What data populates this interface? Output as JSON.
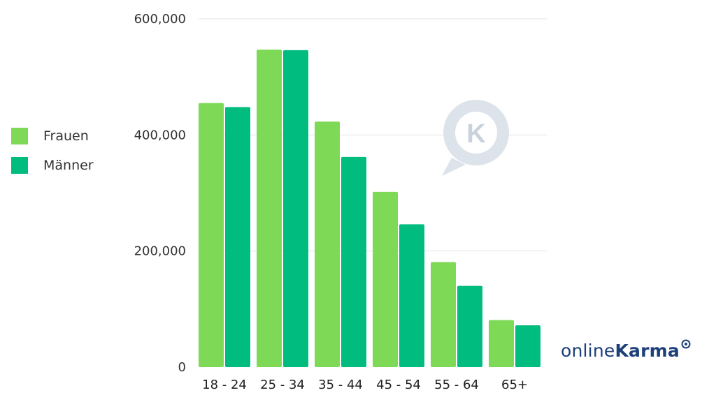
{
  "chart_data": {
    "type": "bar",
    "categories": [
      "18 - 24",
      "25 - 34",
      "35 - 44",
      "45 - 54",
      "55 - 64",
      "65+"
    ],
    "series": [
      {
        "name": "Frauen",
        "values": [
          455000,
          547000,
          423000,
          302000,
          181000,
          81000
        ]
      },
      {
        "name": "Männer",
        "values": [
          448000,
          546000,
          362000,
          246000,
          140000,
          72000
        ]
      }
    ],
    "ylim": [
      0,
      600000
    ],
    "yticks": [
      {
        "value": 0,
        "label": "0"
      },
      {
        "value": 200000,
        "label": "200,000"
      },
      {
        "value": 400000,
        "label": "400,000"
      },
      {
        "value": 600000,
        "label": "600,000"
      }
    ],
    "grid": true,
    "legend_position": "left",
    "colors": [
      "#7ed957",
      "#00bc7e"
    ]
  },
  "legend": {
    "items": [
      {
        "label": "Frauen",
        "color": "#7ed957"
      },
      {
        "label": "Männer",
        "color": "#00bc7e"
      }
    ]
  },
  "branding": {
    "logo_text_light": "online",
    "logo_text_bold": "Karma",
    "watermark_letter": "K",
    "logo_color": "#1d3f7a"
  }
}
